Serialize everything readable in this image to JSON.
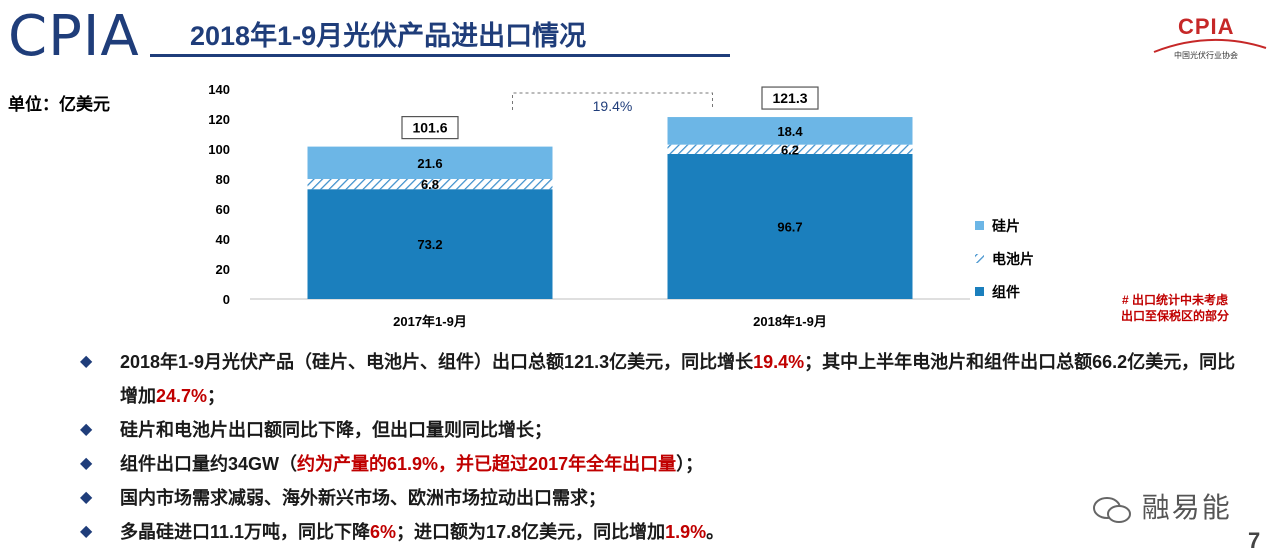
{
  "header": {
    "logo_text": "CPIA",
    "title": "2018年1-9月光伏产品进出口情况",
    "right_logo_text": "CPIA",
    "right_logo_sub": "中国光伏行业协会"
  },
  "unit_label": "单位：亿美元",
  "chart_data": {
    "type": "bar",
    "stacked": true,
    "categories": [
      "2017年1-9月",
      "2018年1-9月"
    ],
    "series": [
      {
        "name": "组件",
        "values": [
          73.2,
          96.7
        ],
        "color": "#1b7fbd"
      },
      {
        "name": "电池片",
        "values": [
          6.8,
          6.2
        ],
        "color": "#ffffff",
        "pattern": "hatch"
      },
      {
        "name": "硅片",
        "values": [
          21.6,
          18.4
        ],
        "color": "#6cb6e6"
      }
    ],
    "totals": [
      101.6,
      121.3
    ],
    "growth_label": "19.4%",
    "ylim": [
      0,
      140
    ],
    "yticks": [
      0,
      20,
      40,
      60,
      80,
      100,
      120,
      140
    ],
    "legend_position": "right"
  },
  "note_lines": [
    "# 出口统计中未考虑",
    "出口至保税区的部分"
  ],
  "bullets": [
    {
      "parts": [
        {
          "text": "2018年1-9月光伏产品（硅片、电池片、组件）出口总额121.3亿美元，同比增长",
          "red": false
        },
        {
          "text": "19.4%",
          "red": true
        },
        {
          "text": "；其中上半年电池片和组件出口总额66.2亿美元，同比增加",
          "red": false
        },
        {
          "text": "24.7%",
          "red": true
        },
        {
          "text": "；",
          "red": false
        }
      ]
    },
    {
      "parts": [
        {
          "text": "硅片和电池片出口额同比下降，但出口量则同比增长；",
          "red": false
        }
      ]
    },
    {
      "parts": [
        {
          "text": "组件出口量约34GW（",
          "red": false
        },
        {
          "text": "约为产量的61.9%，并已超过2017年全年出口量",
          "red": true
        },
        {
          "text": "）；",
          "red": false
        }
      ]
    },
    {
      "parts": [
        {
          "text": "国内市场需求减弱、海外新兴市场、欧洲市场拉动出口需求；",
          "red": false
        }
      ]
    },
    {
      "parts": [
        {
          "text": "多晶硅进口11.1万吨，同比下降",
          "red": false
        },
        {
          "text": "6%",
          "red": true
        },
        {
          "text": "；进口额为17.8亿美元，同比增加",
          "red": false
        },
        {
          "text": "1.9%",
          "red": true
        },
        {
          "text": "。",
          "red": false
        }
      ]
    }
  ],
  "watermark": "融易能",
  "bullet_glyph": "◆",
  "page_number": "7"
}
